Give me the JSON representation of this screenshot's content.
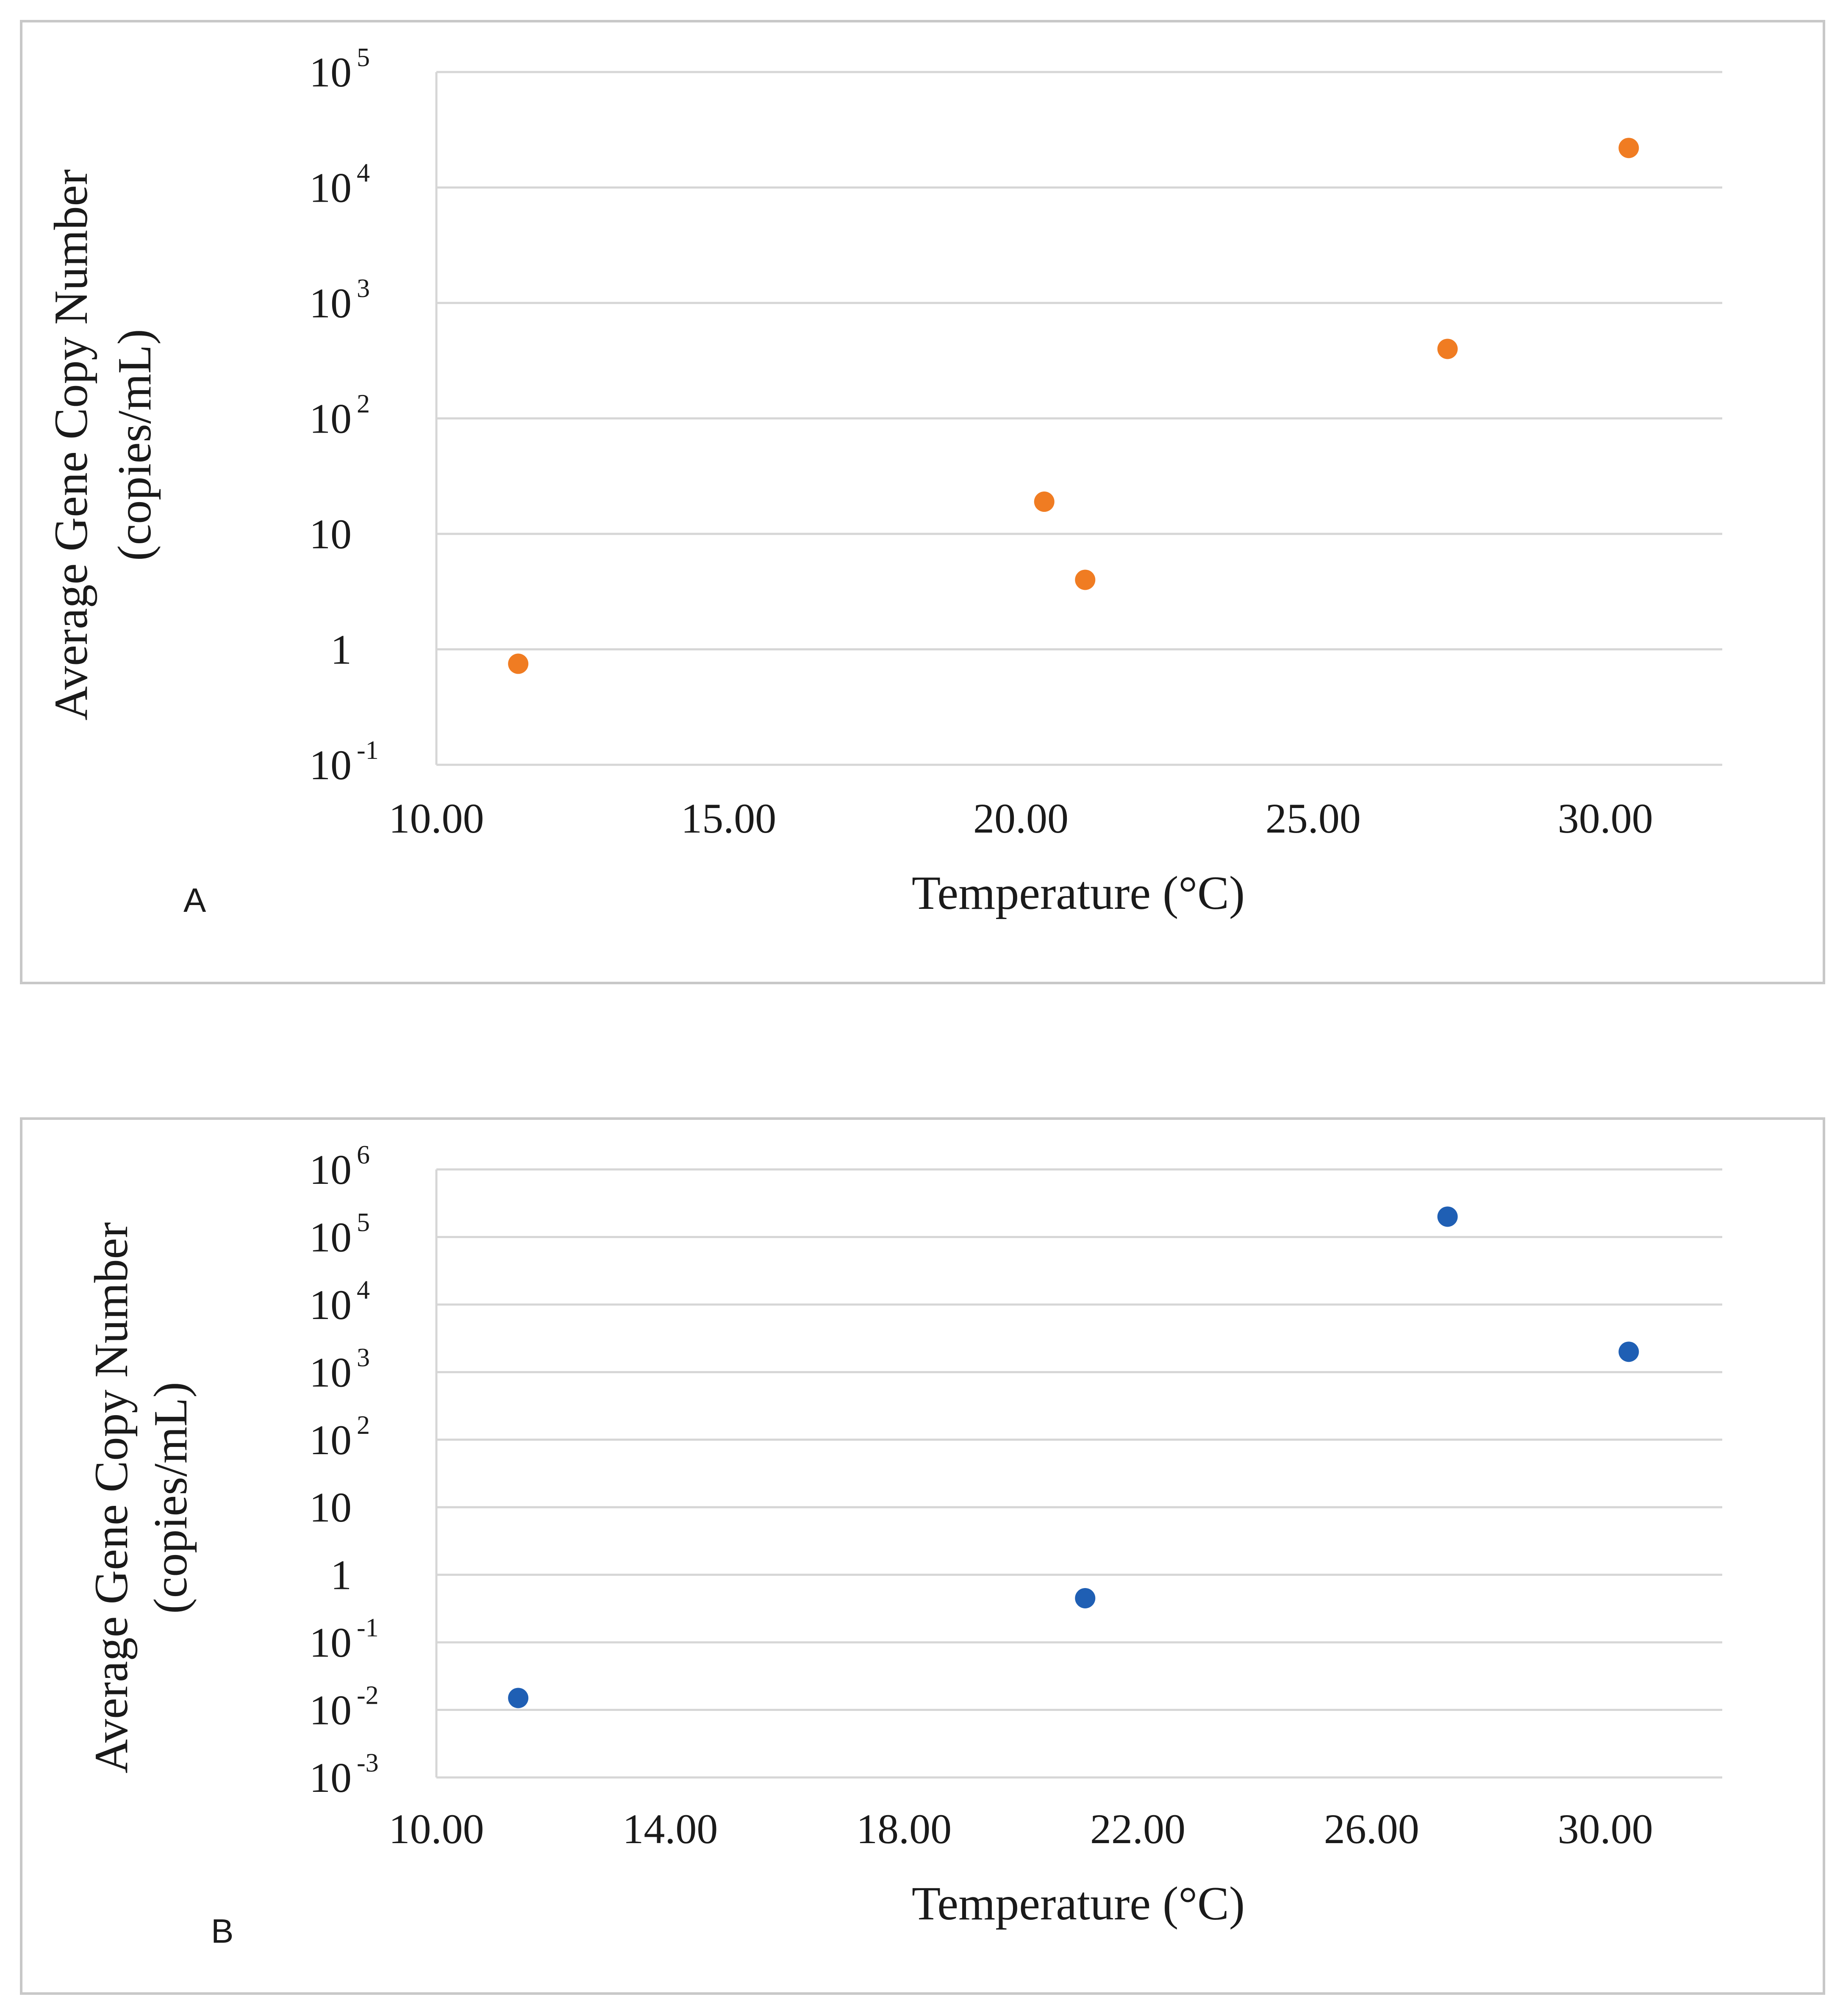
{
  "chart_data": [
    {
      "type": "scatter",
      "panel_label": "A",
      "xlabel": "Temperature (°C)",
      "ylabel_line1": "Average Gene Copy Number",
      "ylabel_line2": "(copies/mL)",
      "yscale": "log",
      "xlim": [
        10.0,
        32.0
      ],
      "ylim_exp": [
        -1,
        5
      ],
      "x_ticks": [
        10,
        15,
        20,
        25,
        30
      ],
      "x_tick_labels": [
        "10.00",
        "15.00",
        "20.00",
        "25.00",
        "30.00"
      ],
      "y_ticks": [
        {
          "exp": -1,
          "base": "10",
          "sup": "-1"
        },
        {
          "exp": 0,
          "base": "1",
          "sup": ""
        },
        {
          "exp": 1,
          "base": "10",
          "sup": ""
        },
        {
          "exp": 2,
          "base": "10",
          "sup": "2"
        },
        {
          "exp": 3,
          "base": "10",
          "sup": "3"
        },
        {
          "exp": 4,
          "base": "10",
          "sup": "4"
        },
        {
          "exp": 5,
          "base": "10",
          "sup": "5"
        }
      ],
      "color": "#f07c22",
      "points": [
        {
          "x": 11.4,
          "y": 0.75
        },
        {
          "x": 20.4,
          "y": 19
        },
        {
          "x": 21.1,
          "y": 4.0
        },
        {
          "x": 27.3,
          "y": 400
        },
        {
          "x": 30.4,
          "y": 22000
        }
      ]
    },
    {
      "type": "scatter",
      "panel_label": "B",
      "xlabel": "Temperature (°C)",
      "ylabel_line1": "Average Gene Copy Number",
      "ylabel_line2": "(copies/mL)",
      "yscale": "log",
      "xlim": [
        10.0,
        32.0
      ],
      "ylim_exp": [
        -3,
        6
      ],
      "x_ticks": [
        10,
        14,
        18,
        22,
        26,
        30
      ],
      "x_tick_labels": [
        "10.00",
        "14.00",
        "18.00",
        "22.00",
        "26.00",
        "30.00"
      ],
      "y_ticks": [
        {
          "exp": -3,
          "base": "10",
          "sup": "-3"
        },
        {
          "exp": -2,
          "base": "10",
          "sup": "-2"
        },
        {
          "exp": -1,
          "base": "10",
          "sup": "-1"
        },
        {
          "exp": 0,
          "base": "1",
          "sup": ""
        },
        {
          "exp": 1,
          "base": "10",
          "sup": ""
        },
        {
          "exp": 2,
          "base": "10",
          "sup": "2"
        },
        {
          "exp": 3,
          "base": "10",
          "sup": "3"
        },
        {
          "exp": 4,
          "base": "10",
          "sup": "4"
        },
        {
          "exp": 5,
          "base": "10",
          "sup": "5"
        },
        {
          "exp": 6,
          "base": "10",
          "sup": "6"
        }
      ],
      "color": "#1f5fb4",
      "points": [
        {
          "x": 11.4,
          "y": 0.015
        },
        {
          "x": 21.1,
          "y": 0.45
        },
        {
          "x": 27.3,
          "y": 200000
        },
        {
          "x": 30.4,
          "y": 2000
        }
      ]
    }
  ]
}
